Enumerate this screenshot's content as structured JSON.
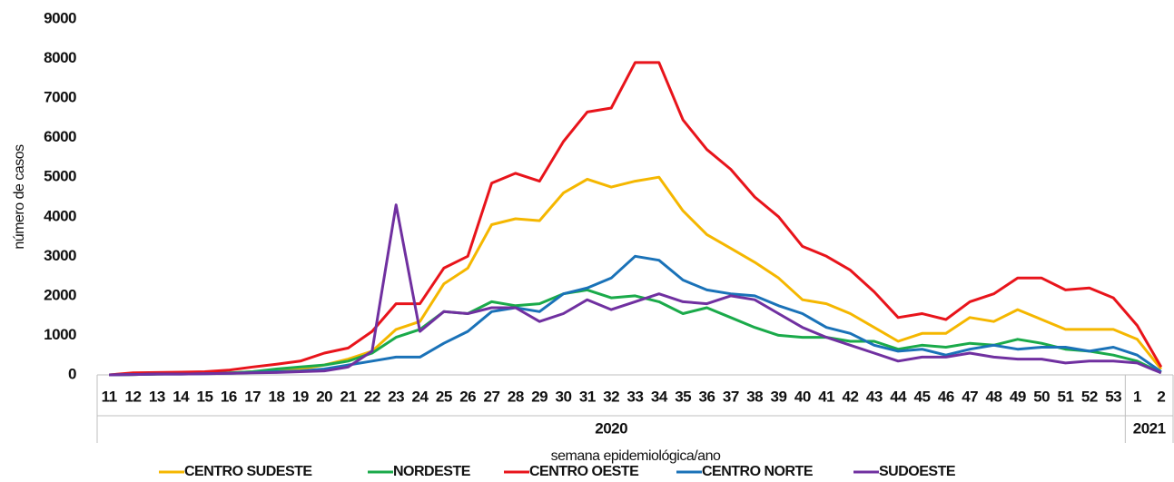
{
  "chart_data": {
    "type": "line",
    "ylabel": "número de casos",
    "xlabel": "semana epidemiológica/ano",
    "categories": [
      "11",
      "12",
      "13",
      "14",
      "15",
      "16",
      "17",
      "18",
      "19",
      "20",
      "21",
      "22",
      "23",
      "24",
      "25",
      "26",
      "27",
      "28",
      "29",
      "30",
      "31",
      "32",
      "33",
      "34",
      "35",
      "36",
      "37",
      "38",
      "39",
      "40",
      "41",
      "42",
      "43",
      "44",
      "45",
      "46",
      "47",
      "48",
      "49",
      "50",
      "51",
      "52",
      "53",
      "1",
      "2"
    ],
    "groups": [
      "2020",
      "2021"
    ],
    "ylim": [
      0,
      9000
    ],
    "yticks": [
      0,
      1000,
      2000,
      3000,
      4000,
      5000,
      6000,
      7000,
      8000,
      9000
    ],
    "grid": false,
    "legend": "bottom",
    "series": [
      {
        "name": "CENTRO SUDESTE",
        "color": "#f5b700",
        "values": [
          0,
          10,
          20,
          30,
          40,
          50,
          80,
          120,
          150,
          250,
          400,
          600,
          1150,
          1350,
          2300,
          2700,
          3800,
          3950,
          3900,
          4600,
          4950,
          4750,
          4900,
          5000,
          4150,
          3550,
          3200,
          2850,
          2450,
          1900,
          1800,
          1550,
          1200,
          850,
          1050,
          1050,
          1450,
          1350,
          1650,
          1400,
          1150,
          1150,
          1150,
          900,
          150
        ]
      },
      {
        "name": "NORDESTE",
        "color": "#1aaa4a",
        "values": [
          0,
          10,
          20,
          30,
          40,
          50,
          80,
          150,
          200,
          250,
          350,
          550,
          950,
          1150,
          1600,
          1550,
          1850,
          1750,
          1800,
          2050,
          2150,
          1950,
          2000,
          1850,
          1550,
          1700,
          1450,
          1200,
          1000,
          950,
          950,
          850,
          850,
          650,
          750,
          700,
          800,
          750,
          900,
          800,
          650,
          600,
          500,
          350,
          50
        ]
      },
      {
        "name": "CENTRO OESTE",
        "color": "#e8141b",
        "values": [
          0,
          50,
          60,
          70,
          80,
          120,
          200,
          270,
          350,
          550,
          680,
          1100,
          1800,
          1800,
          2700,
          3000,
          4850,
          5100,
          4900,
          5900,
          6650,
          6750,
          7900,
          7900,
          6450,
          5700,
          5200,
          4500,
          4000,
          3250,
          3000,
          2650,
          2100,
          1450,
          1550,
          1400,
          1850,
          2050,
          2450,
          2450,
          2150,
          2200,
          1950,
          1250,
          200
        ]
      },
      {
        "name": "CENTRO NORTE",
        "color": "#1a72b8",
        "values": [
          0,
          10,
          20,
          20,
          30,
          40,
          60,
          80,
          100,
          150,
          250,
          350,
          450,
          450,
          800,
          1100,
          1600,
          1700,
          1600,
          2050,
          2200,
          2450,
          3000,
          2900,
          2400,
          2150,
          2050,
          2000,
          1750,
          1550,
          1200,
          1050,
          750,
          600,
          650,
          500,
          650,
          750,
          650,
          700,
          700,
          600,
          700,
          500,
          80
        ]
      },
      {
        "name": "SUDOESTE",
        "color": "#7030a0",
        "values": [
          0,
          10,
          20,
          20,
          30,
          40,
          50,
          60,
          80,
          100,
          200,
          600,
          4300,
          1100,
          1600,
          1550,
          1700,
          1700,
          1350,
          1550,
          1900,
          1650,
          1850,
          2050,
          1850,
          1800,
          2000,
          1900,
          1550,
          1200,
          950,
          750,
          550,
          350,
          450,
          450,
          550,
          450,
          400,
          400,
          300,
          350,
          350,
          300,
          50
        ]
      }
    ]
  }
}
